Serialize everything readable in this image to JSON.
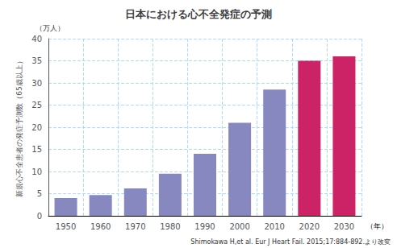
{
  "chart_data": {
    "type": "bar",
    "title": "日本における心不全発症の予測",
    "categories": [
      1950,
      1960,
      1970,
      1980,
      1990,
      2000,
      2010,
      2020,
      2030
    ],
    "values": [
      4.0,
      4.7,
      6.2,
      9.5,
      14.0,
      21.0,
      28.5,
      35.0,
      36.0
    ],
    "colors": [
      "#8888c0",
      "#8888c0",
      "#8888c0",
      "#8888c0",
      "#8888c0",
      "#8888c0",
      "#8888c0",
      "#cc2266",
      "#cc2266"
    ],
    "ylim": [
      0,
      40
    ],
    "yticks": [
      0,
      5,
      10,
      15,
      20,
      25,
      30,
      35,
      40
    ],
    "ylabel": "新規心不全患者の発症予測数（65歳以上）",
    "xlabel": "（年）",
    "annotations": [
      "（万人）",
      "Shimokawa H,et al. Eur J Heart Fail. 2015;17:884-892.より改変"
    ],
    "grid": true
  }
}
